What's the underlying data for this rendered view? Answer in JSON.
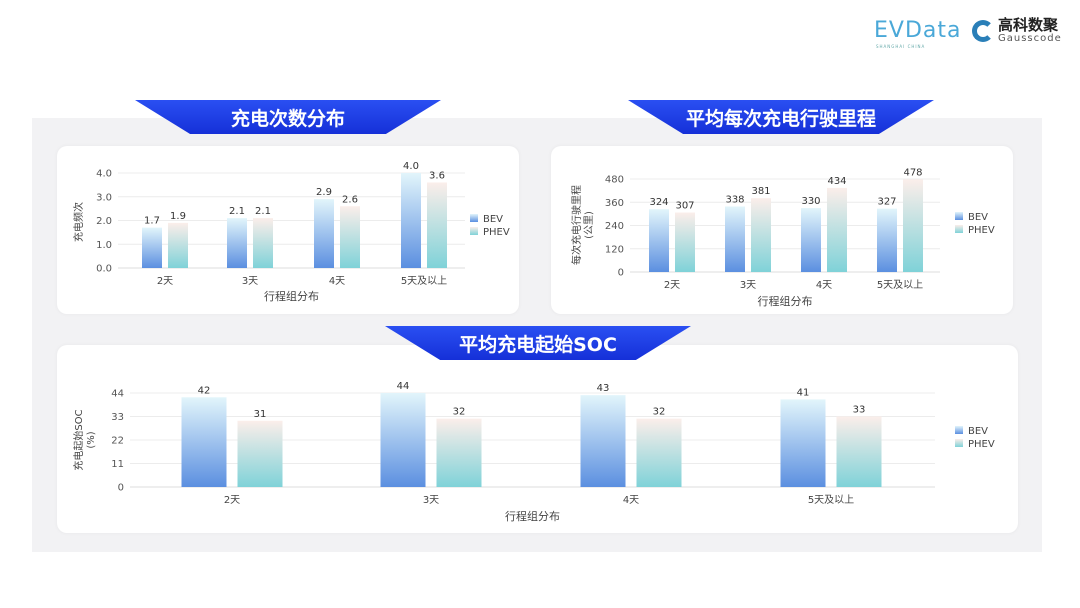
{
  "logos": {
    "evdata": "EVData",
    "evdata_sub": "SHANGHAI CHINA",
    "gauss_cn": "高科数聚",
    "gauss_en": "Gausscode"
  },
  "chart_data": [
    {
      "type": "bar",
      "title": "充电次数分布",
      "xlabel": "行程组分布",
      "ylabel": "充电频次",
      "categories": [
        "2天",
        "3天",
        "4天",
        "5天及以上"
      ],
      "series": [
        {
          "name": "BEV",
          "values": [
            1.7,
            2.1,
            2.9,
            4.0
          ]
        },
        {
          "name": "PHEV",
          "values": [
            1.9,
            2.1,
            2.6,
            3.6
          ]
        }
      ],
      "ylim": [
        0,
        4
      ],
      "yticks": [
        "0.0",
        "1.0",
        "2.0",
        "3.0",
        "4.0"
      ],
      "decimals": 1,
      "grid": true,
      "legend": "right"
    },
    {
      "type": "bar",
      "title": "平均每次充电行驶里程",
      "xlabel": "行程组分布",
      "ylabel": "每次充电行驶里程\n(公里)",
      "categories": [
        "2天",
        "3天",
        "4天",
        "5天及以上"
      ],
      "series": [
        {
          "name": "BEV",
          "values": [
            324,
            338,
            330,
            327
          ]
        },
        {
          "name": "PHEV",
          "values": [
            307,
            381,
            434,
            478
          ]
        }
      ],
      "ylim": [
        0,
        480
      ],
      "yticks": [
        "0",
        "120",
        "240",
        "360",
        "480"
      ],
      "decimals": 0,
      "grid": true,
      "legend": "right"
    },
    {
      "type": "bar",
      "title": "平均充电起始SOC",
      "xlabel": "行程组分布",
      "ylabel": "充电起始SOC\n(%)",
      "categories": [
        "2天",
        "3天",
        "4天",
        "5天及以上"
      ],
      "series": [
        {
          "name": "BEV",
          "values": [
            42,
            44,
            43,
            41
          ]
        },
        {
          "name": "PHEV",
          "values": [
            31,
            32,
            32,
            33
          ]
        }
      ],
      "ylim": [
        0,
        44
      ],
      "yticks": [
        "0",
        "11",
        "22",
        "33",
        "44"
      ],
      "decimals": 0,
      "grid": true,
      "legend": "right"
    }
  ],
  "colors": {
    "banner": "#1a3de8",
    "bev_top": "#e2f5fb",
    "bev_bottom": "#5b8fe0",
    "phev_top": "#fbeeea",
    "phev_bottom": "#7fd2d8"
  }
}
